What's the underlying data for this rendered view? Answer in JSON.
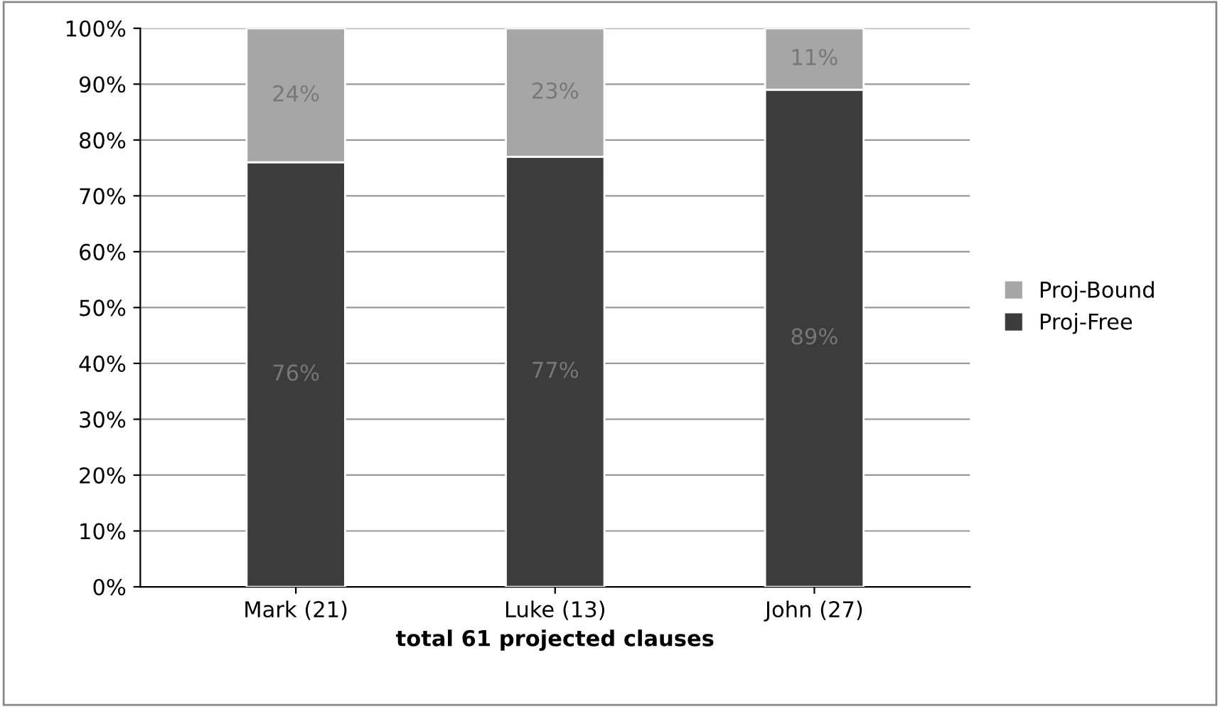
{
  "chart_data": {
    "type": "bar",
    "stacked": true,
    "xlabel": "total 61 projected clauses",
    "categories": [
      "Mark (21)",
      "Luke (13)",
      "John (27)"
    ],
    "series": [
      {
        "name": "Proj-Free",
        "color": "#3c3c3c",
        "values": [
          76,
          77,
          89
        ],
        "value_labels": [
          "76%",
          "77%",
          "89%"
        ]
      },
      {
        "name": "Proj-Bound",
        "color": "#a6a6a6",
        "values": [
          24,
          23,
          11
        ],
        "value_labels": [
          "24%",
          "23%",
          "11%"
        ]
      }
    ],
    "ylim": [
      0,
      100
    ],
    "yticks": [
      {
        "value": 0,
        "label": "0%"
      },
      {
        "value": 10,
        "label": "10%"
      },
      {
        "value": 20,
        "label": "20%"
      },
      {
        "value": 30,
        "label": "30%"
      },
      {
        "value": 40,
        "label": "40%"
      },
      {
        "value": 50,
        "label": "50%"
      },
      {
        "value": 60,
        "label": "60%"
      },
      {
        "value": 70,
        "label": "70%"
      },
      {
        "value": 80,
        "label": "80%"
      },
      {
        "value": 90,
        "label": "90%"
      },
      {
        "value": 100,
        "label": "100%"
      }
    ],
    "grid": "y",
    "legend": "right"
  }
}
